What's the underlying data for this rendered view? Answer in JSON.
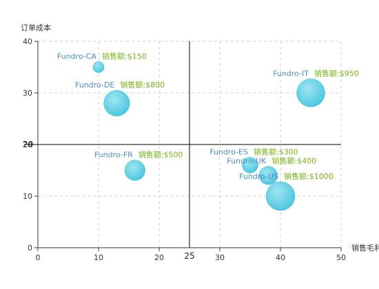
{
  "chart_data": {
    "type": "scatter",
    "xlabel": "销售毛利",
    "ylabel": "订单成本",
    "xlim": [
      0,
      50
    ],
    "ylim": [
      0,
      40
    ],
    "x_ticks": [
      0,
      10,
      20,
      30,
      40,
      50
    ],
    "y_ticks": [
      0,
      10,
      20,
      30,
      40
    ],
    "grid": true,
    "reference_lines": {
      "x": 25,
      "y": 20,
      "x_label": "25",
      "y_label": "20"
    },
    "sales_prefix": "销售额:$",
    "points": [
      {
        "name": "Fundro-CA",
        "x": 10,
        "y": 35,
        "sales": 150
      },
      {
        "name": "Fundro-DE",
        "x": 13,
        "y": 28,
        "sales": 800
      },
      {
        "name": "Fundro-IT",
        "x": 45,
        "y": 30,
        "sales": 950
      },
      {
        "name": "Fundro-FR",
        "x": 16,
        "y": 15,
        "sales": 500
      },
      {
        "name": "Fundro-ES",
        "x": 35,
        "y": 16,
        "sales": 300
      },
      {
        "name": "Fundro-UK",
        "x": 38,
        "y": 14,
        "sales": 400
      },
      {
        "name": "Fundro-US",
        "x": 40,
        "y": 10,
        "sales": 1000
      }
    ],
    "colors": {
      "bubble": "#5dd0e6",
      "bubble_edge": "#3dbad6",
      "name_label": "#4a8fc4",
      "sales_label": "#7ab317",
      "grid": "#cccccc",
      "axis": "#333333",
      "reference_line": "#000000"
    }
  }
}
